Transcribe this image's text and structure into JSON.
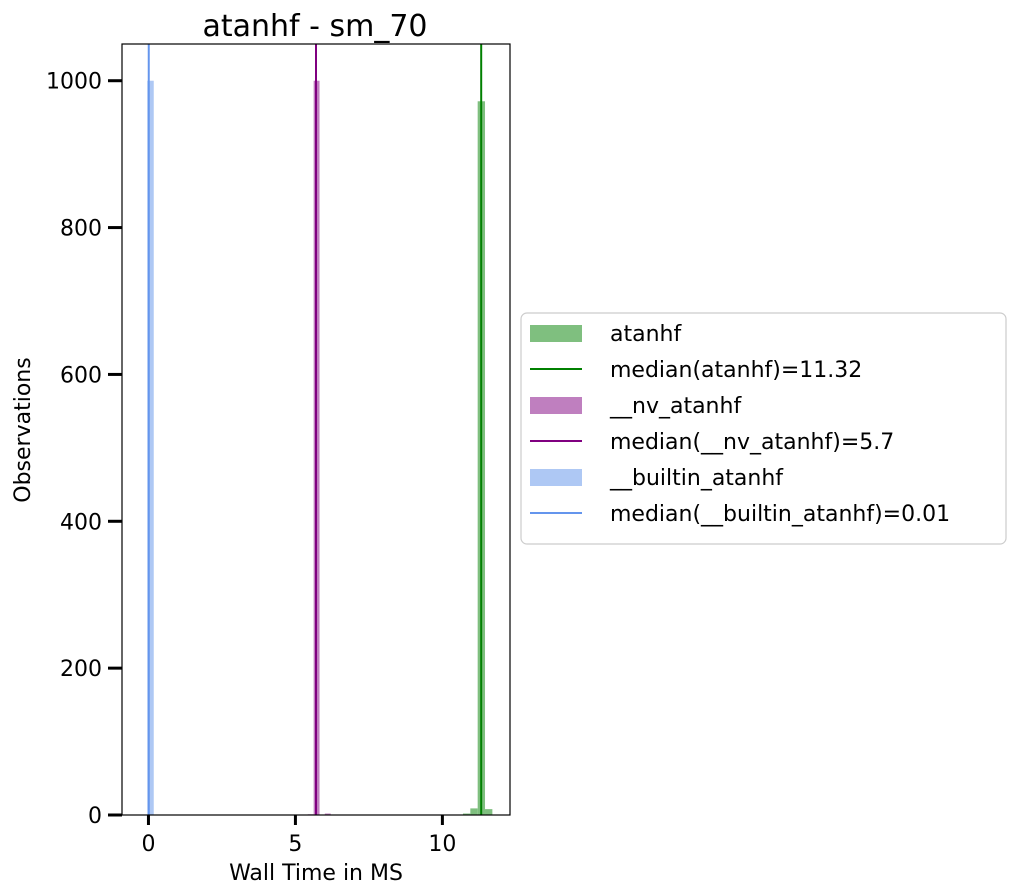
{
  "chart_data": {
    "type": "bar",
    "title": "atanhf - sm_70",
    "xlabel": "Wall Time in MS",
    "ylabel": "Observations",
    "xlim": [
      -0.9,
      12.3
    ],
    "ylim": [
      0,
      1050
    ],
    "xticks": [
      0,
      5,
      10
    ],
    "yticks": [
      0,
      200,
      400,
      600,
      800,
      1000
    ],
    "legend_position": "center-right outside",
    "grid": false,
    "series": [
      {
        "name": "atanhf",
        "kind": "histogram",
        "color": "#7fbf7f",
        "bins": [
          {
            "x0": 10.7,
            "x1": 10.95,
            "count": 2
          },
          {
            "x0": 10.95,
            "x1": 11.2,
            "count": 9
          },
          {
            "x0": 11.2,
            "x1": 11.45,
            "count": 972
          },
          {
            "x0": 11.45,
            "x1": 11.7,
            "count": 8
          }
        ]
      },
      {
        "name": "median(atanhf)=11.32",
        "kind": "vline",
        "color": "#008000",
        "x": 11.32
      },
      {
        "name": "__nv_atanhf",
        "kind": "histogram",
        "color": "#bf7fbf",
        "bins": [
          {
            "x0": 5.42,
            "x1": 5.62,
            "count": 1
          },
          {
            "x0": 5.62,
            "x1": 5.82,
            "count": 1000
          },
          {
            "x0": 6.0,
            "x1": 6.2,
            "count": 2
          }
        ]
      },
      {
        "name": "median(__nv_atanhf)=5.7",
        "kind": "vline",
        "color": "#800080",
        "x": 5.7
      },
      {
        "name": "__builtin_atanhf",
        "kind": "histogram",
        "color": "#aec8f4",
        "bins": [
          {
            "x0": -0.04,
            "x1": 0.18,
            "count": 1000
          }
        ]
      },
      {
        "name": "median(__builtin_atanhf)=0.01",
        "kind": "vline",
        "color": "#6495ed",
        "x": 0.01
      }
    ]
  }
}
